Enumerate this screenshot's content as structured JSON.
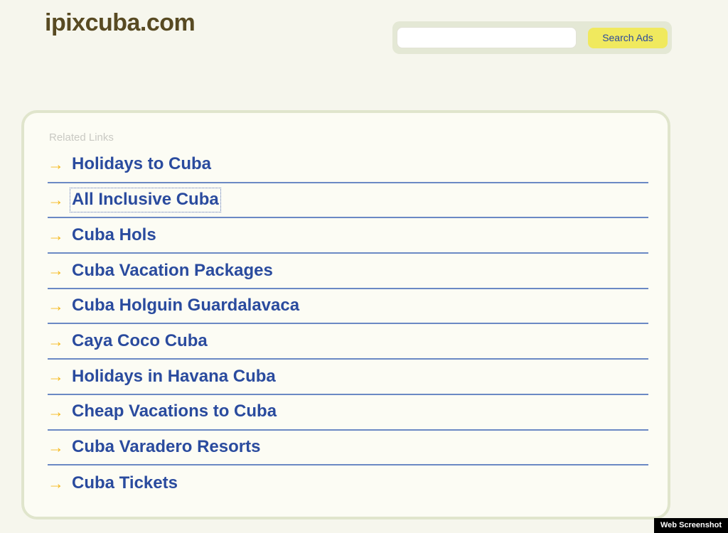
{
  "page": {
    "domain_title": "ipixcuba.com",
    "background_color": "#f6f6ed"
  },
  "search": {
    "input_value": "",
    "input_placeholder": "",
    "button_label": "Search Ads",
    "button_color": "#f0e95e",
    "button_text_color": "#2b4a9e",
    "container_color": "#e4e8d5"
  },
  "related_links": {
    "label": "Related Links",
    "arrow_icon": "→",
    "arrow_color": "#f5b91e",
    "link_color": "#2a4b9e",
    "divider_color": "#6b89c4",
    "focused_item_index": 1,
    "items": [
      "Holidays to Cuba",
      "All Inclusive Cuba",
      "Cuba Hols",
      "Cuba Vacation Packages",
      "Cuba Holguin Guardalavaca",
      "Caya Coco Cuba",
      "Holidays in Havana Cuba",
      "Cheap Vacations to Cuba",
      "Cuba Varadero Resorts",
      "Cuba Tickets"
    ]
  },
  "badge": {
    "label": "Web Screenshot"
  }
}
